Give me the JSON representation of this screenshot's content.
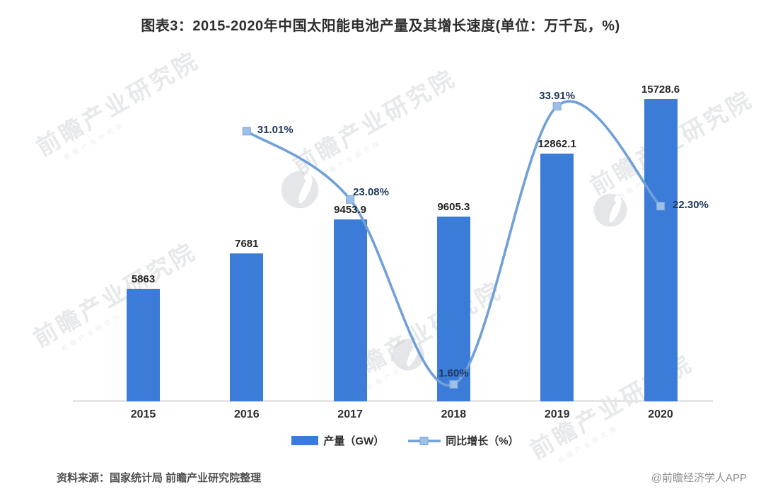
{
  "title": "图表3：2015-2020年中国太阳能电池产量及其增长速度(单位：万千瓦，%)",
  "chart_data": {
    "type": "bar",
    "subtype": "combo-bar-line",
    "title": "图表3：2015-2020年中国太阳能电池产量及其增长速度(单位：万千瓦，%)",
    "unit_note": "单位：万千瓦，%",
    "categories": [
      "2015",
      "2016",
      "2017",
      "2018",
      "2019",
      "2020"
    ],
    "series": [
      {
        "name": "产量（GW）",
        "type": "bar",
        "unit": "万千瓦",
        "values": [
          5863,
          7681,
          9453.9,
          9605.3,
          12862.1,
          15728.6
        ],
        "labels": [
          "5863",
          "7681",
          "9453.9",
          "9605.3",
          "12862.1",
          "15728.6"
        ]
      },
      {
        "name": "同比增长（%）",
        "type": "line",
        "unit": "%",
        "values": [
          null,
          31.01,
          23.08,
          1.6,
          33.91,
          22.3
        ],
        "labels": [
          "31.01%",
          "23.08%",
          "1.60%",
          "33.91%",
          "22.30%"
        ]
      }
    ],
    "xlabel": "",
    "ylabel": "",
    "value_axis_visible": false,
    "grid": false,
    "legend_position": "bottom"
  },
  "legend": {
    "bar_label": "产量（GW）",
    "line_label": "同比增长（%）"
  },
  "footer": {
    "source": "资料来源：国家统计局 前瞻产业研究院整理",
    "credit": "@前瞻经济学人APP"
  },
  "watermark": {
    "text": "前瞻产业研究院"
  },
  "colors": {
    "bar": "#3b7cd8",
    "line": "#6fa0d8",
    "marker_fill": "#9cc0e8",
    "marker_edge": "#7aa8da",
    "value_label": "#252525",
    "pct_label": "#20395c",
    "axis_line": "#e6e6e6"
  }
}
